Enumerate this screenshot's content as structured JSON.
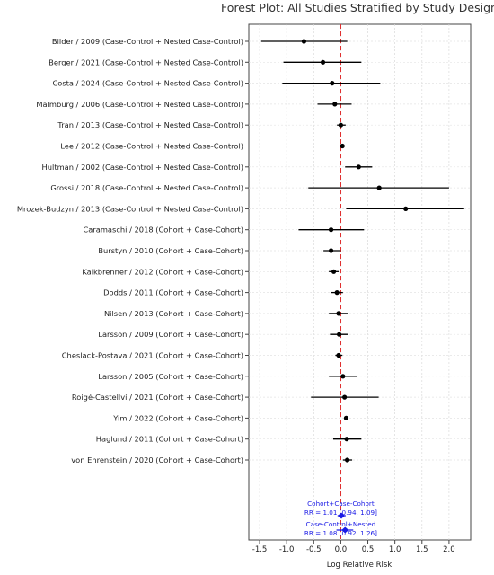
{
  "chart_data": {
    "type": "scatter",
    "subtype": "forest-plot",
    "title": "Forest Plot: All Studies Stratified by Study Design",
    "xlabel": "Log Relative Risk",
    "ylabel": "",
    "xlim": [
      -1.7,
      2.4
    ],
    "xticks": [
      "-1.5",
      "-1.0",
      "-0.5",
      "0.0",
      "0.5",
      "1.0",
      "1.5",
      "2.0"
    ],
    "xtick_values": [
      -1.5,
      -1.0,
      -0.5,
      0.0,
      0.5,
      1.0,
      1.5,
      2.0
    ],
    "grid": true,
    "reference_line": {
      "x": 0.0,
      "style": "dashed",
      "color": "#e03030"
    },
    "point_color": "#000000",
    "pooled_color": "#1a1ae6",
    "studies": [
      {
        "label": "Bilder / 2009 (Case-Control + Nested Case-Control)",
        "est": -0.68,
        "lo": -1.47,
        "hi": 0.12
      },
      {
        "label": "Berger / 2021 (Case-Control + Nested Case-Control)",
        "est": -0.33,
        "lo": -1.06,
        "hi": 0.38
      },
      {
        "label": "Costa / 2024 (Case-Control + Nested Case-Control)",
        "est": -0.16,
        "lo": -1.08,
        "hi": 0.73
      },
      {
        "label": "Malmburg / 2006 (Case-Control + Nested Case-Control)",
        "est": -0.11,
        "lo": -0.43,
        "hi": 0.2
      },
      {
        "label": "Tran / 2013 (Case-Control + Nested Case-Control)",
        "est": 0.0,
        "lo": -0.07,
        "hi": 0.09
      },
      {
        "label": "Lee / 2012 (Case-Control + Nested Case-Control)",
        "est": 0.03,
        "lo": -0.01,
        "hi": 0.07
      },
      {
        "label": "Hultman / 2002 (Case-Control + Nested Case-Control)",
        "est": 0.33,
        "lo": 0.08,
        "hi": 0.58
      },
      {
        "label": "Grossi / 2018 (Case-Control + Nested Case-Control)",
        "est": 0.71,
        "lo": -0.6,
        "hi": 2.0
      },
      {
        "label": "Mrozek-Budzyn / 2013 (Case-Control + Nested Case-Control)",
        "est": 1.2,
        "lo": 0.1,
        "hi": 2.28
      },
      {
        "label": "Caramaschi / 2018 (Cohort + Case-Cohort)",
        "est": -0.18,
        "lo": -0.78,
        "hi": 0.43
      },
      {
        "label": "Burstyn / 2010 (Cohort + Case-Cohort)",
        "est": -0.18,
        "lo": -0.32,
        "hi": 0.0
      },
      {
        "label": "Kalkbrenner / 2012 (Cohort + Case-Cohort)",
        "est": -0.13,
        "lo": -0.22,
        "hi": -0.04
      },
      {
        "label": "Dodds / 2011 (Cohort + Case-Cohort)",
        "est": -0.07,
        "lo": -0.18,
        "hi": 0.04
      },
      {
        "label": "Nilsen / 2013 (Cohort + Case-Cohort)",
        "est": -0.04,
        "lo": -0.22,
        "hi": 0.14
      },
      {
        "label": "Larsson / 2009 (Cohort + Case-Cohort)",
        "est": -0.03,
        "lo": -0.2,
        "hi": 0.13
      },
      {
        "label": "Cheslack-Postava / 2021 (Cohort + Case-Cohort)",
        "est": -0.04,
        "lo": -0.1,
        "hi": 0.03
      },
      {
        "label": "Larsson / 2005 (Cohort + Case-Cohort)",
        "est": 0.04,
        "lo": -0.22,
        "hi": 0.3
      },
      {
        "label": "Roigé-Castellví / 2021 (Cohort + Case-Cohort)",
        "est": 0.07,
        "lo": -0.55,
        "hi": 0.7
      },
      {
        "label": "Yim / 2022 (Cohort + Case-Cohort)",
        "est": 0.1,
        "lo": 0.06,
        "hi": 0.14
      },
      {
        "label": "Haglund / 2011 (Cohort + Case-Cohort)",
        "est": 0.11,
        "lo": -0.14,
        "hi": 0.38
      },
      {
        "label": "von Ehrenstein / 2020 (Cohort + Case-Cohort)",
        "est": 0.12,
        "lo": 0.04,
        "hi": 0.21
      }
    ],
    "pooled": [
      {
        "label": "Cohort+Case-Cohort",
        "text": "RR = 1.01 [0.94, 1.09]",
        "est": 0.01,
        "lo": -0.06,
        "hi": 0.09
      },
      {
        "label": "Case-Control+Nested",
        "text": "RR = 1.08 [0.92, 1.26]",
        "est": 0.08,
        "lo": -0.08,
        "hi": 0.23
      }
    ]
  }
}
